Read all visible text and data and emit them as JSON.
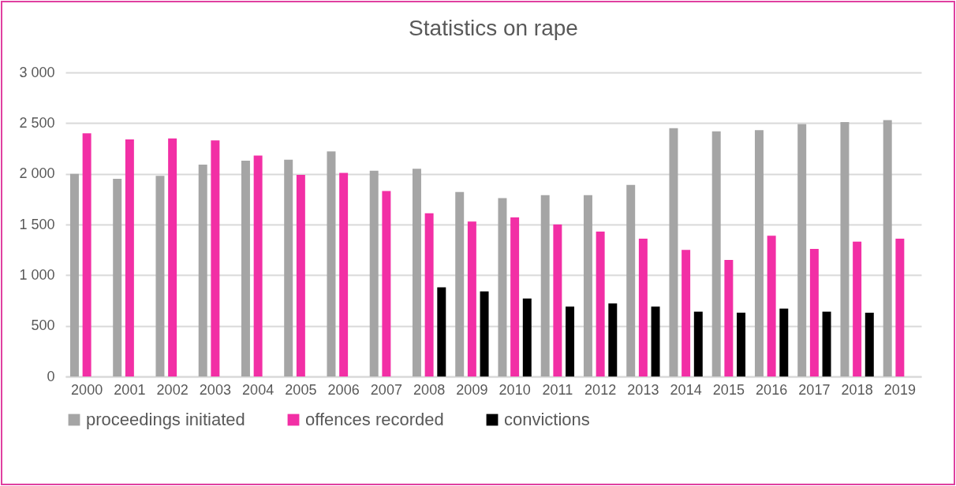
{
  "chart_data": {
    "type": "bar",
    "title": "Statistics on rape",
    "categories": [
      "2000",
      "2001",
      "2002",
      "2003",
      "2004",
      "2005",
      "2006",
      "2007",
      "2008",
      "2009",
      "2010",
      "2011",
      "2012",
      "2013",
      "2014",
      "2015",
      "2016",
      "2017",
      "2018",
      "2019"
    ],
    "series": [
      {
        "name": "proceedings initiated",
        "color": "#a5a5a5",
        "values": [
          2000,
          1950,
          1980,
          2090,
          2130,
          2140,
          2220,
          2030,
          2050,
          1820,
          1760,
          1790,
          1790,
          1890,
          2450,
          2420,
          2430,
          2490,
          2510,
          2530
        ]
      },
      {
        "name": "offences recorded",
        "color": "#f22fa5",
        "values": [
          2400,
          2340,
          2350,
          2330,
          2180,
          1990,
          2010,
          1830,
          1610,
          1530,
          1570,
          1500,
          1430,
          1360,
          1250,
          1150,
          1390,
          1260,
          1330,
          1360
        ]
      },
      {
        "name": "convictions",
        "color": "#000000",
        "values": [
          null,
          null,
          null,
          null,
          null,
          null,
          null,
          null,
          880,
          840,
          770,
          690,
          720,
          690,
          640,
          630,
          670,
          640,
          630,
          null
        ]
      }
    ],
    "ylim": [
      0,
      3000
    ],
    "yticks": [
      0,
      500,
      {
        "value": 1000,
        "label": "1 000"
      },
      {
        "value": 1500,
        "label": "1 500"
      },
      {
        "value": 2000,
        "label": "2 000"
      },
      {
        "value": 2500,
        "label": "2 500"
      },
      {
        "value": 3000,
        "label": "3 000"
      }
    ],
    "grid": "y",
    "legend": "bottom"
  }
}
